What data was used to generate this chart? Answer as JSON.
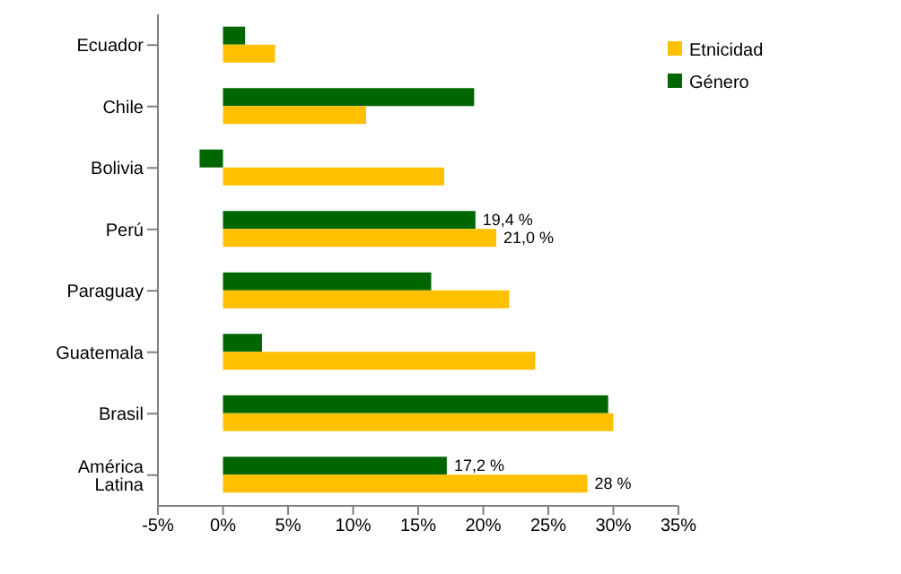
{
  "chart_data": {
    "type": "bar",
    "orientation": "horizontal",
    "categories": [
      "Ecuador",
      "Chile",
      "Bolivia",
      "Perú",
      "Paraguay",
      "Guatemala",
      "Brasil",
      "América Latina"
    ],
    "series": [
      {
        "name": "Género",
        "color": "#006600",
        "values": [
          1.7,
          19.3,
          -1.8,
          19.4,
          16.0,
          3.0,
          29.6,
          17.2
        ],
        "value_labels": [
          null,
          null,
          null,
          "19,4 %",
          null,
          null,
          null,
          "17,2 %"
        ]
      },
      {
        "name": "Etnicidad",
        "color": "#ffc000",
        "values": [
          4.0,
          11.0,
          17.0,
          21.0,
          22.0,
          24.0,
          30.0,
          28
        ],
        "value_labels": [
          null,
          null,
          null,
          "21,0 %",
          null,
          null,
          null,
          "28 %"
        ]
      }
    ],
    "xlim": [
      -5,
      35
    ],
    "xticks": [
      {
        "value": -5,
        "label": "-5%"
      },
      {
        "value": 0,
        "label": "0%"
      },
      {
        "value": 5,
        "label": "5%"
      },
      {
        "value": 10,
        "label": "10%"
      },
      {
        "value": 15,
        "label": "15%"
      },
      {
        "value": 20,
        "label": "20%"
      },
      {
        "value": 25,
        "label": "25%"
      },
      {
        "value": 30,
        "label": "30%"
      },
      {
        "value": 35,
        "label": "35%"
      }
    ],
    "grid": false,
    "legend": "top right"
  }
}
